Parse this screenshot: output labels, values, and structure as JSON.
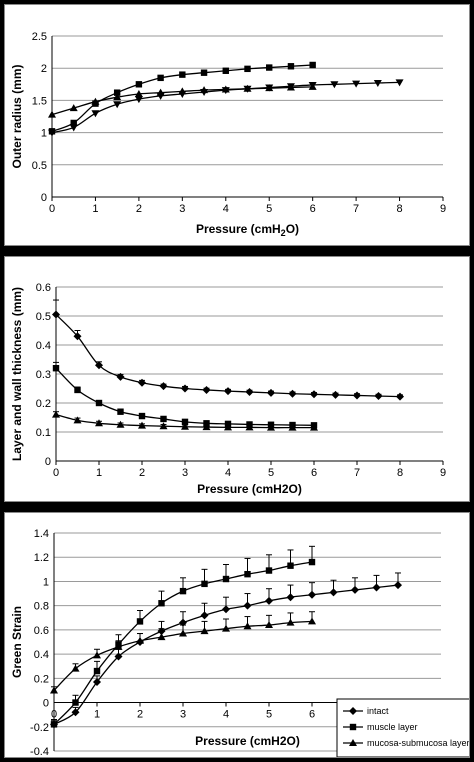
{
  "chart_data": [
    {
      "type": "line",
      "xlabel": "Pressure (cmH2O)",
      "ylabel": "Outer radius (mm)",
      "xlim": [
        0,
        9
      ],
      "ylim": [
        0,
        2.5
      ],
      "xticks": [
        "0",
        "1",
        "2",
        "3",
        "4",
        "5",
        "6",
        "7",
        "8",
        "9"
      ],
      "yticks": [
        "0",
        "0.5",
        "1",
        "1.5",
        "2",
        "2.5"
      ],
      "grid": "horizontal",
      "series": [
        {
          "marker": "square",
          "x": [
            0,
            0.5,
            1,
            1.5,
            2,
            2.5,
            3,
            3.5,
            4,
            4.5,
            5,
            5.5,
            6
          ],
          "y": [
            1.02,
            1.15,
            1.45,
            1.62,
            1.75,
            1.85,
            1.9,
            1.93,
            1.96,
            1.99,
            2.01,
            2.03,
            2.05
          ]
        },
        {
          "marker": "triangle-up",
          "x": [
            0,
            0.5,
            1,
            1.5,
            2,
            2.5,
            3,
            3.5,
            4,
            4.5,
            5,
            5.5,
            6
          ],
          "y": [
            1.28,
            1.38,
            1.48,
            1.55,
            1.6,
            1.62,
            1.64,
            1.66,
            1.67,
            1.68,
            1.69,
            1.7,
            1.71
          ]
        },
        {
          "marker": "triangle-down",
          "x": [
            0,
            0.5,
            1,
            1.5,
            2,
            2.5,
            3,
            3.5,
            4,
            4.5,
            5,
            5.5,
            6,
            6.5,
            7,
            7.5,
            8
          ],
          "y": [
            1.0,
            1.08,
            1.3,
            1.44,
            1.52,
            1.57,
            1.6,
            1.63,
            1.66,
            1.68,
            1.7,
            1.72,
            1.74,
            1.75,
            1.76,
            1.77,
            1.78
          ]
        }
      ]
    },
    {
      "type": "line",
      "xlabel": "Pressure (cmH2O)",
      "ylabel": "Layer and wall thickness (mm)",
      "xlim": [
        0,
        9
      ],
      "ylim": [
        0,
        0.6
      ],
      "xticks": [
        "0",
        "1",
        "2",
        "3",
        "4",
        "5",
        "6",
        "7",
        "8",
        "9"
      ],
      "yticks": [
        "0",
        "0.1",
        "0.2",
        "0.3",
        "0.4",
        "0.5",
        "0.6"
      ],
      "grid": "horizontal",
      "series": [
        {
          "marker": "diamond",
          "x": [
            0,
            0.5,
            1,
            1.5,
            2,
            2.5,
            3,
            3.5,
            4,
            4.5,
            5,
            5.5,
            6,
            6.5,
            7,
            7.5,
            8
          ],
          "y": [
            0.505,
            0.43,
            0.33,
            0.29,
            0.27,
            0.258,
            0.25,
            0.245,
            0.241,
            0.238,
            0.235,
            0.232,
            0.23,
            0.228,
            0.226,
            0.224,
            0.222
          ],
          "err": [
            0.05,
            0.02,
            0.012,
            0.008,
            0.008,
            0.007,
            0.007,
            0.006,
            0.006,
            0.006,
            0.006,
            0.006,
            0.006,
            0.006,
            0.006,
            0.006,
            0.006
          ]
        },
        {
          "marker": "square",
          "x": [
            0,
            0.5,
            1,
            1.5,
            2,
            2.5,
            3,
            3.5,
            4,
            4.5,
            5,
            5.5,
            6
          ],
          "y": [
            0.32,
            0.245,
            0.2,
            0.17,
            0.155,
            0.145,
            0.135,
            0.13,
            0.128,
            0.126,
            0.125,
            0.124,
            0.123
          ],
          "err": [
            0.02,
            0.01,
            0.008,
            0.007,
            0.006,
            0.006,
            0.006,
            0.006,
            0.006,
            0.006,
            0.006,
            0.006,
            0.006
          ]
        },
        {
          "marker": "triangle-up",
          "x": [
            0,
            0.5,
            1,
            1.5,
            2,
            2.5,
            3,
            3.5,
            4,
            4.5,
            5,
            5.5,
            6
          ],
          "y": [
            0.16,
            0.14,
            0.13,
            0.125,
            0.122,
            0.12,
            0.118,
            0.117,
            0.116,
            0.116,
            0.115,
            0.115,
            0.115
          ],
          "err": [
            0.01,
            0.008,
            0.007,
            0.006,
            0.006,
            0.006,
            0.006,
            0.006,
            0.006,
            0.006,
            0.006,
            0.006,
            0.006
          ]
        }
      ]
    },
    {
      "type": "line",
      "xlabel": "Pressure (cmH2O)",
      "ylabel": "Green Strain",
      "xlim": [
        0,
        9
      ],
      "ylim": [
        -0.4,
        1.4
      ],
      "xticks": [
        "0",
        "1",
        "2",
        "3",
        "4",
        "5",
        "6",
        "7",
        "8",
        "9"
      ],
      "yticks": [
        "-0.4",
        "-0.2",
        "0",
        "0.2",
        "0.4",
        "0.6",
        "0.8",
        "1",
        "1.2",
        "1.4"
      ],
      "grid": "horizontal",
      "legend": {
        "position": "bottom-right",
        "entries": [
          {
            "label": "intact",
            "marker": "diamond"
          },
          {
            "label": "muscle layer",
            "marker": "square"
          },
          {
            "label": "mucosa-submucosa layer",
            "marker": "triangle-up"
          }
        ]
      },
      "series": [
        {
          "marker": "diamond",
          "x": [
            0,
            0.5,
            1,
            1.5,
            2,
            2.5,
            3,
            3.5,
            4,
            4.5,
            5,
            5.5,
            6,
            6.5,
            7,
            7.5,
            8
          ],
          "y": [
            -0.18,
            -0.08,
            0.17,
            0.38,
            0.5,
            0.59,
            0.66,
            0.72,
            0.77,
            0.8,
            0.84,
            0.87,
            0.89,
            0.91,
            0.93,
            0.95,
            0.97
          ],
          "err": [
            0.03,
            0.04,
            0.05,
            0.06,
            0.07,
            0.08,
            0.09,
            0.1,
            0.1,
            0.1,
            0.1,
            0.1,
            0.1,
            0.1,
            0.1,
            0.1,
            0.1
          ]
        },
        {
          "marker": "square",
          "x": [
            0,
            0.5,
            1,
            1.5,
            2,
            2.5,
            3,
            3.5,
            4,
            4.5,
            5,
            5.5,
            6
          ],
          "y": [
            -0.18,
            0.0,
            0.26,
            0.48,
            0.67,
            0.82,
            0.92,
            0.98,
            1.02,
            1.06,
            1.09,
            1.13,
            1.16
          ],
          "err": [
            0.04,
            0.06,
            0.08,
            0.08,
            0.09,
            0.1,
            0.11,
            0.12,
            0.12,
            0.13,
            0.13,
            0.13,
            0.13
          ]
        },
        {
          "marker": "triangle-up",
          "x": [
            0,
            0.5,
            1,
            1.5,
            2,
            2.5,
            3,
            3.5,
            4,
            4.5,
            5,
            5.5,
            6
          ],
          "y": [
            0.1,
            0.28,
            0.39,
            0.46,
            0.51,
            0.54,
            0.57,
            0.59,
            0.61,
            0.63,
            0.64,
            0.66,
            0.67
          ],
          "err": [
            0.03,
            0.04,
            0.05,
            0.05,
            0.06,
            0.07,
            0.07,
            0.08,
            0.08,
            0.08,
            0.08,
            0.08,
            0.08
          ]
        }
      ]
    }
  ]
}
